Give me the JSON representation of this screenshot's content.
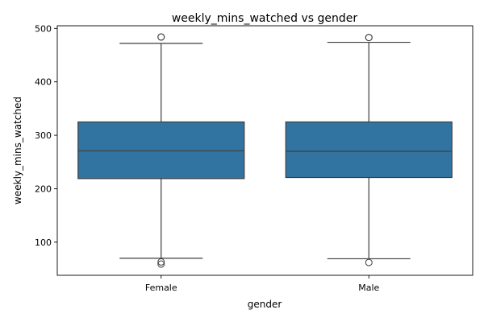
{
  "chart_data": {
    "type": "box",
    "title": "weekly_mins_watched vs gender",
    "xlabel": "gender",
    "ylabel": "weekly_mins_watched",
    "ylim": [
      38,
      505
    ],
    "yticks": [
      100,
      200,
      300,
      400,
      500
    ],
    "categories": [
      "Female",
      "Male"
    ],
    "color": "#3274a1",
    "edge_color": "#3d3d3d",
    "grid": false,
    "boxes": [
      {
        "category": "Female",
        "whislo": 70,
        "q1": 219,
        "med": 271,
        "q3": 325,
        "whishi": 472,
        "fliers": [
          484,
          484,
          63,
          59
        ]
      },
      {
        "category": "Male",
        "whislo": 69,
        "q1": 221,
        "med": 270,
        "q3": 325,
        "whishi": 474,
        "fliers": [
          483,
          483,
          62
        ]
      }
    ]
  }
}
